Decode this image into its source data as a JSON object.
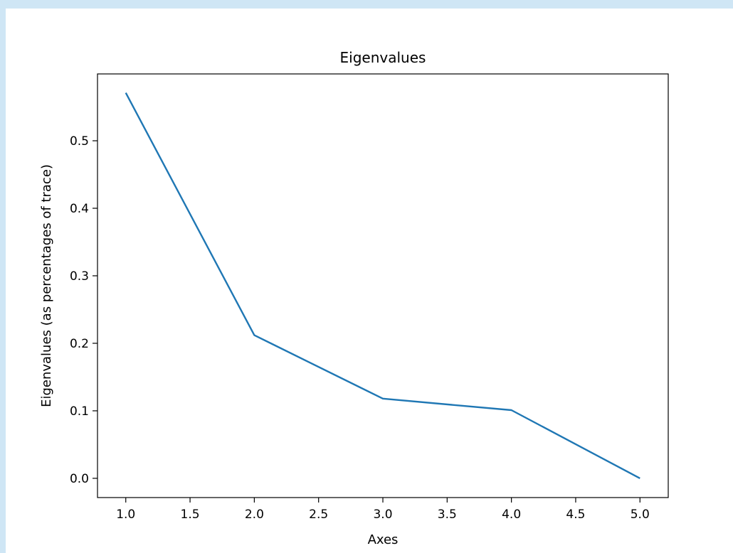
{
  "chart_data": {
    "type": "line",
    "title": "Eigenvalues",
    "xlabel": "Axes",
    "ylabel": "Eigenvalues (as percentages of trace)",
    "x": [
      1.0,
      2.0,
      3.0,
      4.0,
      5.0
    ],
    "series": [
      {
        "values": [
          0.571,
          0.212,
          0.118,
          0.101,
          0.0
        ]
      }
    ],
    "xlim": [
      0.78,
      5.22
    ],
    "ylim": [
      -0.0285,
      0.599
    ],
    "xticks": [
      "1.0",
      "1.5",
      "2.0",
      "2.5",
      "3.0",
      "3.5",
      "4.0",
      "4.5",
      "5.0"
    ],
    "yticks": [
      "0.0",
      "0.1",
      "0.2",
      "0.3",
      "0.4",
      "0.5"
    ],
    "grid": false,
    "colors": {
      "line": "#1f77b4",
      "axes": "#000000",
      "frame_bg": "#cfe6f5"
    }
  }
}
